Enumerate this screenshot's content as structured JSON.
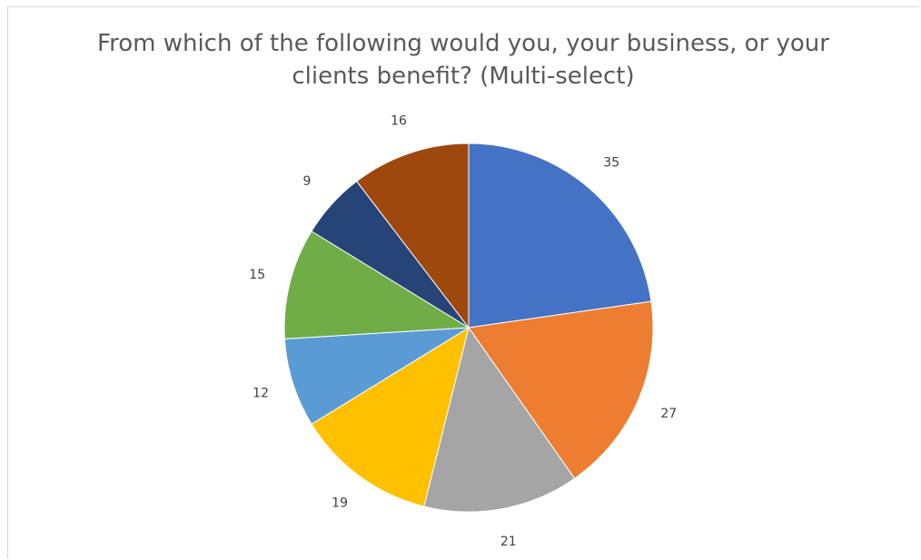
{
  "chart_data": {
    "type": "pie",
    "title": "From which of the following would you, your business, or your clients benefit? (Multi-select)",
    "values": [
      35,
      27,
      21,
      19,
      12,
      15,
      9,
      16
    ],
    "colors": [
      "#4472c4",
      "#ed7d31",
      "#a5a5a5",
      "#ffc000",
      "#5b9bd5",
      "#70ad47",
      "#264478",
      "#9e480e"
    ],
    "data_labels": [
      "35",
      "27",
      "21",
      "19",
      "12",
      "15",
      "9",
      "16"
    ],
    "legend": "none"
  }
}
